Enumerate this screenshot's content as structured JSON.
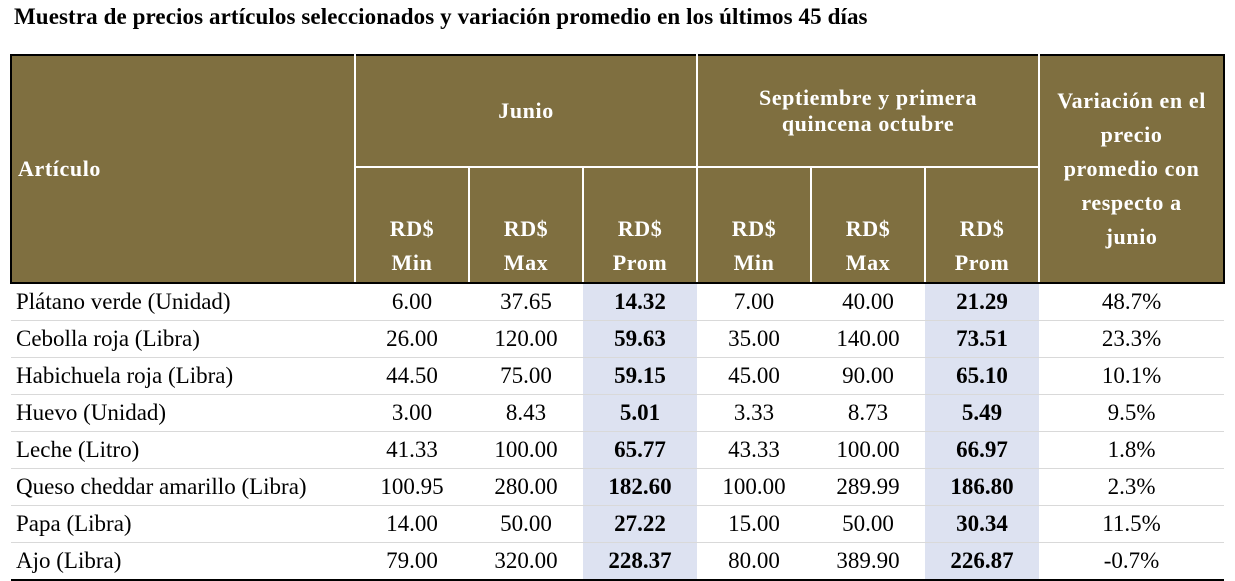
{
  "title": "Muestra de precios artículos seleccionados y variación promedio en los últimos 45 días",
  "header": {
    "articulo": "Artículo",
    "group1": "Junio",
    "group2_line1": "Septiembre y primera",
    "group2_line2": "quincena octubre",
    "variacion_lines": [
      "Variación en el",
      "precio",
      "promedio con",
      "respecto a",
      "junio"
    ],
    "sub": [
      [
        "RD$",
        "Min"
      ],
      [
        "RD$",
        "Max"
      ],
      [
        "RD$",
        "Prom"
      ],
      [
        "RD$",
        "Min"
      ],
      [
        "RD$",
        "Max"
      ],
      [
        "RD$",
        "Prom"
      ]
    ]
  },
  "rows": [
    {
      "articulo": "Plátano verde (Unidad)",
      "jun_min": "6.00",
      "jun_max": "37.65",
      "jun_prom": "14.32",
      "sep_min": "7.00",
      "sep_max": "40.00",
      "sep_prom": "21.29",
      "var": "48.7%"
    },
    {
      "articulo": "Cebolla roja (Libra)",
      "jun_min": "26.00",
      "jun_max": "120.00",
      "jun_prom": "59.63",
      "sep_min": "35.00",
      "sep_max": "140.00",
      "sep_prom": "73.51",
      "var": "23.3%"
    },
    {
      "articulo": "Habichuela roja (Libra)",
      "jun_min": "44.50",
      "jun_max": "75.00",
      "jun_prom": "59.15",
      "sep_min": "45.00",
      "sep_max": "90.00",
      "sep_prom": "65.10",
      "var": "10.1%"
    },
    {
      "articulo": "Huevo (Unidad)",
      "jun_min": "3.00",
      "jun_max": "8.43",
      "jun_prom": "5.01",
      "sep_min": "3.33",
      "sep_max": "8.73",
      "sep_prom": "5.49",
      "var": "9.5%"
    },
    {
      "articulo": "Leche (Litro)",
      "jun_min": "41.33",
      "jun_max": "100.00",
      "jun_prom": "65.77",
      "sep_min": "43.33",
      "sep_max": "100.00",
      "sep_prom": "66.97",
      "var": "1.8%"
    },
    {
      "articulo": "Queso cheddar amarillo (Libra)",
      "jun_min": "100.95",
      "jun_max": "280.00",
      "jun_prom": "182.60",
      "sep_min": "100.00",
      "sep_max": "289.99",
      "sep_prom": "186.80",
      "var": "2.3%"
    },
    {
      "articulo": "Papa (Libra)",
      "jun_min": "14.00",
      "jun_max": "50.00",
      "jun_prom": "27.22",
      "sep_min": "15.00",
      "sep_max": "50.00",
      "sep_prom": "30.34",
      "var": "11.5%"
    },
    {
      "articulo": "Ajo (Libra)",
      "jun_min": "79.00",
      "jun_max": "320.00",
      "jun_prom": "228.37",
      "sep_min": "80.00",
      "sep_max": "389.90",
      "sep_prom": "226.87",
      "var": "-0.7%"
    }
  ],
  "colors": {
    "header_bg": "#7f6f40",
    "header_text": "#ffffff",
    "prom_highlight": "#dde2f1"
  }
}
